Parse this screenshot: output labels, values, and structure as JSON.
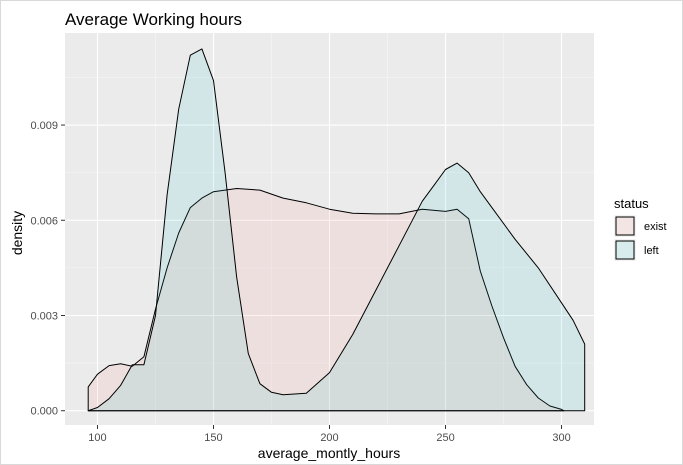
{
  "chart_data": {
    "type": "area",
    "title": "Average Working hours",
    "xlabel": "average_montly_hours",
    "ylabel": "density",
    "xlim": [
      86,
      314
    ],
    "ylim": [
      -0.00045,
      0.0119
    ],
    "x_ticks": [
      100,
      150,
      200,
      250,
      300
    ],
    "x_tick_labels": [
      "100",
      "150",
      "200",
      "250",
      "300"
    ],
    "y_ticks": [
      0.0,
      0.003,
      0.006,
      0.009
    ],
    "y_tick_labels": [
      "0.000",
      "0.003",
      "0.006",
      "0.009"
    ],
    "grid": true,
    "legend": {
      "title": "status",
      "placement": "right"
    },
    "series": [
      {
        "name": "exist",
        "fill": "#f8766d",
        "x": [
          96,
          100,
          105,
          110,
          115,
          120,
          125,
          130,
          135,
          140,
          145,
          150,
          155,
          160,
          170,
          180,
          190,
          200,
          210,
          220,
          230,
          240,
          250,
          255,
          260,
          265,
          270,
          275,
          280,
          285,
          290,
          295,
          300,
          301
        ],
        "y": [
          0.00075,
          0.00115,
          0.00142,
          0.00148,
          0.0014,
          0.0017,
          0.0032,
          0.0045,
          0.0056,
          0.0064,
          0.0067,
          0.0069,
          0.00695,
          0.007,
          0.00695,
          0.0067,
          0.00655,
          0.00635,
          0.00622,
          0.0062,
          0.0062,
          0.00635,
          0.00628,
          0.00635,
          0.00605,
          0.0044,
          0.0033,
          0.0023,
          0.0014,
          0.00082,
          0.0004,
          0.00015,
          4e-05,
          0.0
        ]
      },
      {
        "name": "left",
        "fill": "#00bfc4",
        "x": [
          96,
          100,
          105,
          110,
          115,
          120,
          125,
          130,
          135,
          140,
          145,
          150,
          155,
          160,
          165,
          170,
          175,
          180,
          190,
          200,
          210,
          220,
          230,
          240,
          245,
          250,
          255,
          260,
          265,
          270,
          280,
          290,
          300,
          305,
          310
        ],
        "y": [
          0.0,
          0.0001,
          0.00038,
          0.0008,
          0.00145,
          0.00145,
          0.003,
          0.0068,
          0.0095,
          0.0112,
          0.0114,
          0.0104,
          0.0075,
          0.0042,
          0.0018,
          0.00085,
          0.00058,
          0.0005,
          0.00055,
          0.0012,
          0.0024,
          0.0038,
          0.0052,
          0.0066,
          0.0071,
          0.0076,
          0.0078,
          0.0075,
          0.0069,
          0.0064,
          0.0054,
          0.0045,
          0.0034,
          0.00285,
          0.0021
        ]
      }
    ]
  }
}
